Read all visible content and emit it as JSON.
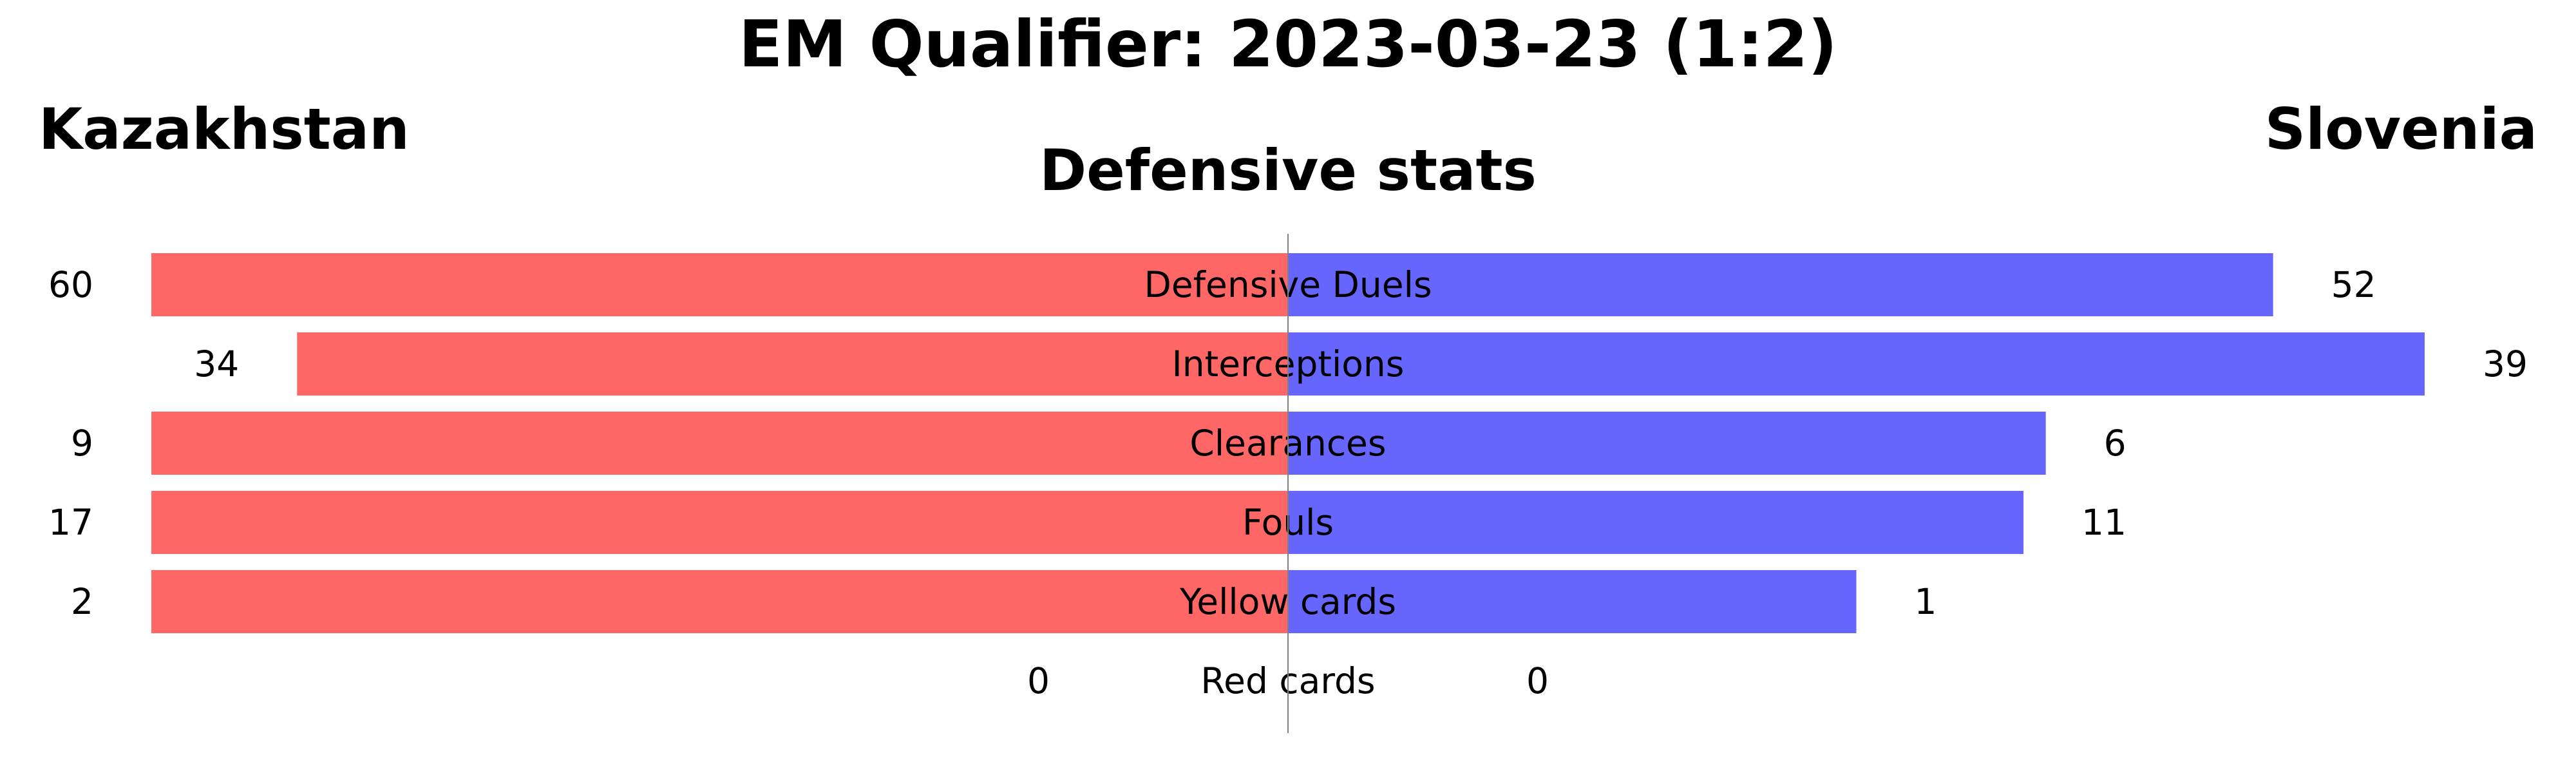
{
  "chart_data": {
    "type": "bar",
    "title": "EM Qualifier: 2023-03-23 (1:2)",
    "subtitle": "Defensive stats",
    "teams": {
      "left": {
        "name": "Kazakhstan",
        "color": "#ff0000",
        "bar_color": "#ff6666"
      },
      "right": {
        "name": "Slovenia",
        "color": "#0000ff",
        "bar_color": "#6666ff"
      }
    },
    "categories": [
      "Defensive Duels",
      "Interceptions",
      "Clearances",
      "Fouls",
      "Yellow cards",
      "Red cards"
    ],
    "series": [
      {
        "name": "Kazakhstan",
        "values": [
          60,
          34,
          9,
          17,
          2,
          0
        ]
      },
      {
        "name": "Slovenia",
        "values": [
          52,
          39,
          6,
          11,
          1,
          0
        ]
      }
    ],
    "grid": false,
    "center_line_color": "#808080"
  }
}
